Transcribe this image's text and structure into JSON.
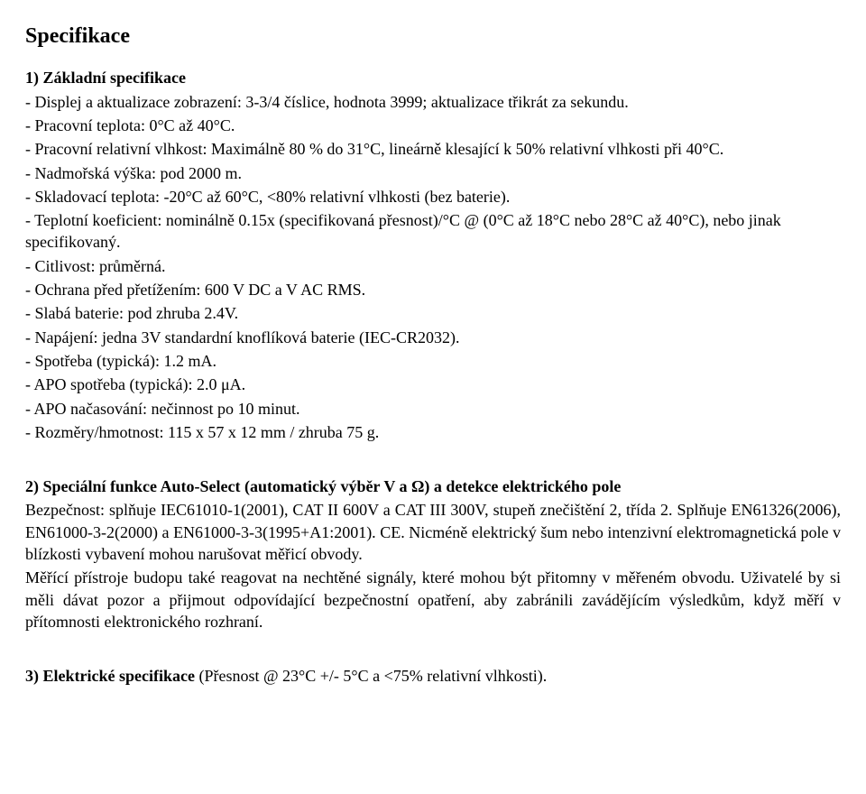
{
  "heading": "Specifikace",
  "sec1": {
    "title": "1) Základní specifikace",
    "lines": [
      "- Displej a aktualizace zobrazení: 3-3/4 číslice, hodnota 3999; aktualizace třikrát za sekundu.",
      "- Pracovní teplota: 0°C až 40°C.",
      "- Pracovní relativní vlhkost: Maximálně 80 % do 31°C, lineárně klesající k 50% relativní vlhkosti při 40°C.",
      "- Nadmořská výška: pod 2000 m.",
      "- Skladovací teplota: -20°C až 60°C, <80% relativní vlhkosti (bez baterie).",
      "- Teplotní koeficient: nominálně 0.15x (specifikovaná přesnost)/°C @ (0°C až 18°C nebo 28°C až 40°C), nebo jinak specifikovaný.",
      "- Citlivost: průměrná.",
      "- Ochrana před přetížením: 600 V DC a V AC RMS.",
      "- Slabá baterie: pod zhruba 2.4V.",
      "- Napájení: jedna 3V standardní knoflíková baterie (IEC-CR2032).",
      "- Spotřeba (typická): 1.2 mA.",
      "- APO spotřeba (typická): 2.0 μA.",
      "- APO načasování: nečinnost po 10 minut.",
      "- Rozměry/hmotnost: 115 x 57 x 12 mm / zhruba 75 g."
    ]
  },
  "sec2": {
    "title": "2) Speciální funkce Auto-Select (automatický výběr V a Ω) a detekce elektrického pole",
    "paragraphs": [
      "Bezpečnost: splňuje IEC61010-1(2001), CAT II 600V a CAT III 300V, stupeň znečištění 2, třída 2. Splňuje EN61326(2006), EN61000-3-2(2000) a EN61000-3-3(1995+A1:2001). CE. Nicméně elektrický šum nebo intenzivní elektromagnetická pole v blízkosti vybavení mohou narušovat měřicí obvody.",
      "Měřící přístroje budopu také reagovat na nechtěné signály, které mohou být přitomny v měřeném obvodu. Uživatelé by si měli dávat pozor a přijmout odpovídající bezpečnostní opatření, aby zabránili zavádějícím výsledkům, když měří v přítomnosti elektronického rozhraní."
    ]
  },
  "sec3": {
    "title_bold": "3) Elektrické specifikace",
    "title_rest": " (Přesnost @ 23°C +/- 5°C a <75% relativní vlhkosti)."
  }
}
